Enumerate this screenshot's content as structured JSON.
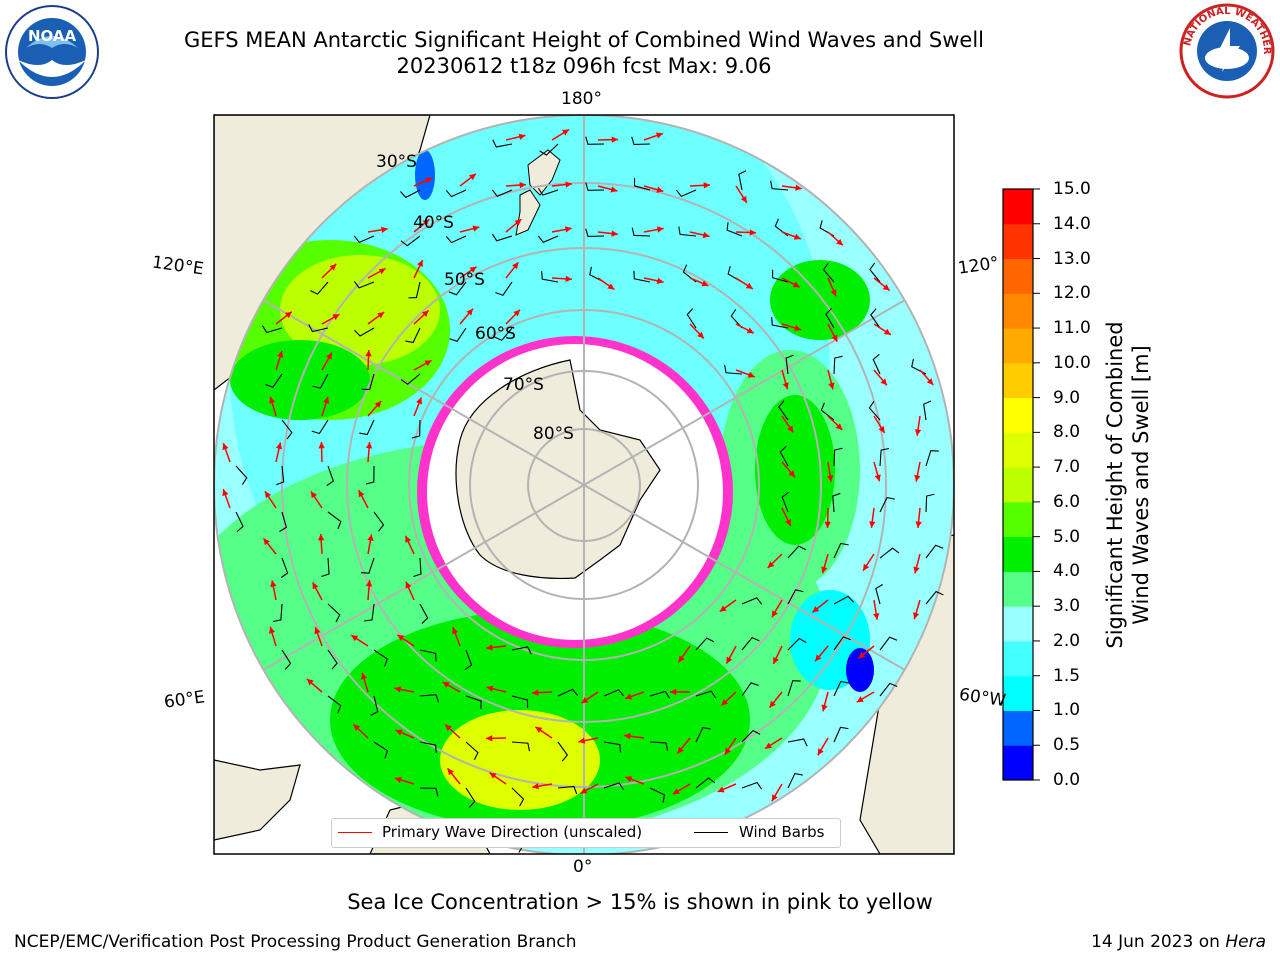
{
  "header": {
    "title_line1": "GEFS MEAN Antarctic Significant Height of Combined Wind Waves and Swell",
    "title_line2": "20230612 t18z 096h fcst   Max: 9.06"
  },
  "logos": {
    "left": {
      "icon": "noaa-logo-icon",
      "text": "NOAA"
    },
    "right": {
      "icon": "national-weather-service-logo-icon",
      "text": "NATIONAL WEATHER SERVICE"
    }
  },
  "map": {
    "longitude_labels": {
      "top": "180°",
      "bottom": "0°",
      "upper_left": "120°E",
      "upper_right": "120°",
      "lower_left": "60°E",
      "lower_right": "60°W"
    },
    "latitude_labels": [
      "30°S",
      "40°S",
      "50°S",
      "60°S",
      "70°S",
      "80°S"
    ],
    "colors": {
      "land": "#efecdc",
      "ice": "#ffffff",
      "sea_ice_edge": "#ff33cc",
      "wave_arrow": "#ff0000",
      "wind_barb": "#000000",
      "grid": "#b3b3b3"
    }
  },
  "legend": {
    "primary_wave_label": "Primary Wave Direction (unscaled)",
    "wind_barbs_label": "Wind Barbs"
  },
  "colorbar": {
    "title_line1": "Significant Height of Combined",
    "title_line2": "Wind Waves and Swell [m]",
    "ticks": [
      "15.0",
      "14.0",
      "13.0",
      "12.0",
      "11.0",
      "10.0",
      "9.0",
      "8.0",
      "7.0",
      "6.0",
      "5.0",
      "4.0",
      "3.0",
      "2.0",
      "1.5",
      "1.0",
      "0.5",
      "0.0"
    ],
    "colors_bottom_to_top": [
      "#0000ff",
      "#0066ff",
      "#00ffff",
      "#44ffff",
      "#99ffff",
      "#55ff88",
      "#00ee00",
      "#55ff00",
      "#bbff00",
      "#ddff00",
      "#ffff00",
      "#ffcc00",
      "#ffaa00",
      "#ff8800",
      "#ff6600",
      "#ff3300",
      "#ff0000"
    ]
  },
  "footer": {
    "sea_ice_note": "Sea Ice Concentration > 15% is shown in pink to yellow",
    "credit": "NCEP/EMC/Verification Post Processing Product Generation Branch",
    "date": "14 Jun 2023 on",
    "model": "Hera"
  }
}
